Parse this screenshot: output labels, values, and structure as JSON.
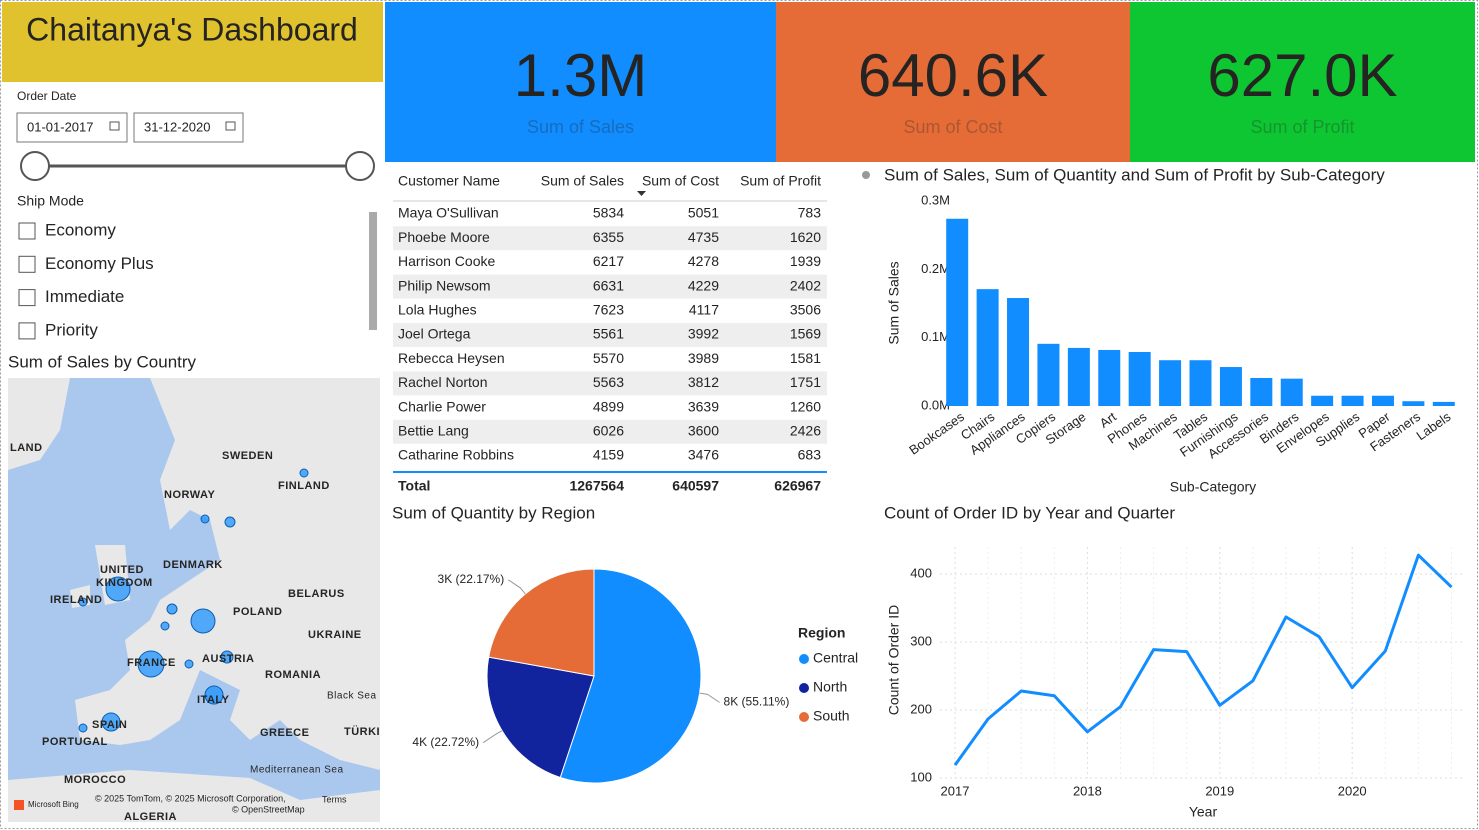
{
  "header": {
    "title": "Chaitanya's Dashboard"
  },
  "date_slicer": {
    "label": "Order Date",
    "start": "01-01-2017",
    "end": "31-12-2020"
  },
  "ship_mode": {
    "label": "Ship Mode",
    "options": [
      "Economy",
      "Economy Plus",
      "Immediate",
      "Priority"
    ]
  },
  "kpis": [
    {
      "value": "1.3M",
      "label": "Sum of Sales",
      "color": "#118dff"
    },
    {
      "value": "640.6K",
      "label": "Sum of Cost",
      "color": "#e66c37"
    },
    {
      "value": "627.0K",
      "label": "Sum of Profit",
      "color": "#0ec631"
    }
  ],
  "table": {
    "columns": [
      "Customer Name",
      "Sum of Sales",
      "Sum of Cost",
      "Sum of Profit"
    ],
    "rows": [
      [
        "Maya O'Sullivan",
        5834,
        5051,
        783
      ],
      [
        "Phoebe Moore",
        6355,
        4735,
        1620
      ],
      [
        "Harrison Cooke",
        6217,
        4278,
        1939
      ],
      [
        "Philip Newsom",
        6631,
        4229,
        2402
      ],
      [
        "Lola Hughes",
        7623,
        4117,
        3506
      ],
      [
        "Joel Ortega",
        5561,
        3992,
        1569
      ],
      [
        "Rebecca Heysen",
        5570,
        3989,
        1581
      ],
      [
        "Rachel Norton",
        5563,
        3812,
        1751
      ],
      [
        "Charlie Power",
        4899,
        3639,
        1260
      ],
      [
        "Bettie Lang",
        6026,
        3600,
        2426
      ],
      [
        "Catharine Robbins",
        4159,
        3476,
        683
      ]
    ],
    "total": [
      "Total",
      1267564,
      640597,
      626967
    ]
  },
  "map": {
    "title": "Sum of Sales by Country",
    "labels": [
      "LAND",
      "SWEDEN",
      "NORWAY",
      "FINLAND",
      "UNITED",
      "KINGDOM",
      "DENMARK",
      "IRELAND",
      "BELARUS",
      "POLAND",
      "UKRAINE",
      "FRANCE",
      "AUSTRIA",
      "ROMANIA",
      "Black Sea",
      "ITALY",
      "SPAIN",
      "PORTUGAL",
      "GREECE",
      "TÜRKI",
      "MOROCCO",
      "Mediterranean Sea",
      "ALGERIA"
    ],
    "attribution": [
      "Microsoft Bing",
      "© 2025 TomTom, © 2025 Microsoft Corporation,",
      "Terms",
      "© OpenStreetMap"
    ]
  },
  "chart_data": [
    {
      "type": "bar",
      "title": "Sum of Sales, Sum of Quantity and Sum of Profit by Sub-Category",
      "x_label": "Sub-Category",
      "y_label": "Sum of Sales",
      "color": "#118dff",
      "categories": [
        "Bookcases",
        "Chairs",
        "Appliances",
        "Copiers",
        "Storage",
        "Art",
        "Phones",
        "Machines",
        "Tables",
        "Furnishings",
        "Accessories",
        "Binders",
        "Envelopes",
        "Supplies",
        "Paper",
        "Fasteners",
        "Labels"
      ],
      "values": [
        274000,
        171000,
        158000,
        91000,
        85000,
        82000,
        79000,
        67000,
        67000,
        57000,
        41000,
        40000,
        15000,
        15000,
        15000,
        7000,
        6000
      ],
      "ylim": [
        0,
        300000
      ],
      "yticks": [
        {
          "value": 0,
          "label": "0.0M"
        },
        {
          "value": 100000,
          "label": "0.1M"
        },
        {
          "value": 200000,
          "label": "0.2M"
        },
        {
          "value": 300000,
          "label": "0.3M"
        }
      ]
    },
    {
      "type": "pie",
      "title": "Sum of Quantity by Region",
      "legend_title": "Region",
      "categories": [
        "Central",
        "North",
        "South"
      ],
      "values": [
        55.11,
        22.72,
        22.17
      ],
      "value_labels": [
        "8K (55.11%)",
        "4K (22.72%)",
        "3K (22.17%)"
      ],
      "colors": [
        "#118dff",
        "#12239e",
        "#e66c37"
      ]
    },
    {
      "type": "line",
      "title": "Count of Order ID by Year and Quarter",
      "x_label": "Year",
      "y_label": "Count of Order ID",
      "color": "#118dff",
      "categories": [
        "2017",
        null,
        null,
        null,
        "2018",
        null,
        null,
        null,
        "2019",
        null,
        null,
        null,
        "2020",
        null,
        null,
        null
      ],
      "values": [
        119,
        187,
        228,
        221,
        168,
        205,
        289,
        286,
        207,
        243,
        337,
        308,
        233,
        287,
        428,
        381
      ],
      "ylim": [
        100,
        440
      ],
      "yticks": [
        100,
        200,
        300,
        400
      ],
      "grid": true
    }
  ]
}
